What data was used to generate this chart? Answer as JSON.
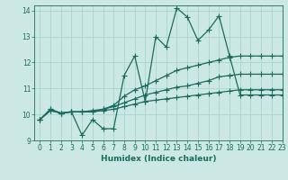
{
  "xlabel": "Humidex (Indice chaleur)",
  "background_color": "#cce8e4",
  "grid_color": "#aad4ce",
  "line_color": "#1a6b5e",
  "xlim": [
    -0.5,
    23
  ],
  "ylim": [
    9,
    14.2
  ],
  "yticks": [
    9,
    10,
    11,
    12,
    13,
    14
  ],
  "xticks": [
    0,
    1,
    2,
    3,
    4,
    5,
    6,
    7,
    8,
    9,
    10,
    11,
    12,
    13,
    14,
    15,
    16,
    17,
    18,
    19,
    20,
    21,
    22,
    23
  ],
  "series": [
    [
      9.8,
      10.2,
      10.05,
      10.1,
      9.2,
      9.8,
      9.45,
      9.45,
      11.5,
      12.25,
      10.5,
      13.0,
      12.6,
      14.1,
      13.75,
      12.85,
      13.25,
      13.8,
      12.25,
      10.75,
      10.75,
      10.75,
      10.75,
      10.75
    ],
    [
      9.8,
      10.2,
      10.05,
      10.1,
      10.1,
      10.1,
      10.2,
      10.35,
      10.7,
      10.95,
      11.1,
      11.3,
      11.5,
      11.7,
      11.8,
      11.9,
      12.0,
      12.1,
      12.2,
      12.25,
      12.25,
      12.25,
      12.25,
      12.25
    ],
    [
      9.8,
      10.15,
      10.05,
      10.1,
      10.1,
      10.15,
      10.2,
      10.3,
      10.45,
      10.6,
      10.75,
      10.85,
      10.95,
      11.05,
      11.1,
      11.2,
      11.3,
      11.45,
      11.5,
      11.55,
      11.55,
      11.55,
      11.55,
      11.55
    ],
    [
      9.8,
      10.15,
      10.05,
      10.1,
      10.1,
      10.1,
      10.15,
      10.2,
      10.3,
      10.4,
      10.5,
      10.55,
      10.6,
      10.65,
      10.7,
      10.75,
      10.8,
      10.85,
      10.9,
      10.95,
      10.95,
      10.95,
      10.95,
      10.95
    ]
  ],
  "linewidth": 0.9,
  "marker": "+",
  "marker_size": 4,
  "markeredgewidth": 0.8,
  "tick_fontsize": 5.5,
  "xlabel_fontsize": 6.5
}
